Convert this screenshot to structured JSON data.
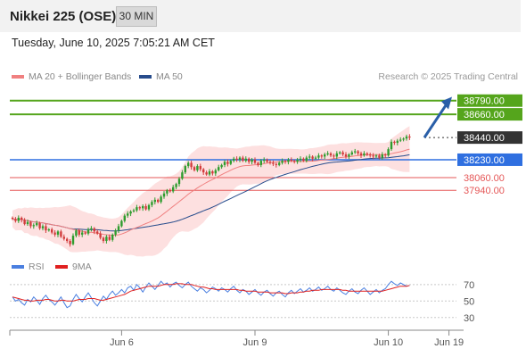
{
  "header": {
    "title": "Nikkei 225 (OSE)",
    "timeframe": "30 MIN"
  },
  "datetime": "Tuesday, June 10, 2025 7:05:21 AM CET",
  "legend": {
    "ma20": "MA 20 + Bollinger Bands",
    "ma50": "MA 50",
    "credit": "Research © 2025 Trading Central"
  },
  "rsi_legend": {
    "rsi": "RSI",
    "ma9": "9MA"
  },
  "colors": {
    "target_green": "#55a51c",
    "current_dark": "#333333",
    "pivot_blue": "#2f6fe0",
    "support_red": "#e55757",
    "candle_green": "#2e9c2e",
    "candle_red": "#d23c3c",
    "ma20": "#f08080",
    "ma50": "#274c8c",
    "bollinger_fill": "#fde0e0",
    "arrow": "#2a5fa8"
  },
  "chart_data": [
    {
      "type": "candlestick",
      "title": "Nikkei 225 (OSE)",
      "interval": "30 MIN",
      "price_levels": [
        {
          "label": "38790.00",
          "value": 38790,
          "role": "target"
        },
        {
          "label": "38660.00",
          "value": 38660,
          "role": "target"
        },
        {
          "label": "38440.00",
          "value": 38440,
          "role": "last"
        },
        {
          "label": "38230.00",
          "value": 38230,
          "role": "pivot"
        },
        {
          "label": "38060.00",
          "value": 38060,
          "role": "support"
        },
        {
          "label": "37940.00",
          "value": 37940,
          "role": "support"
        }
      ],
      "ylim": [
        37350,
        38940
      ],
      "x_ticks": [
        {
          "label": "Jun 6",
          "index": 36
        },
        {
          "label": "Jun 9",
          "index": 80
        },
        {
          "label": "Jun 10",
          "index": 124
        },
        {
          "label": "Jun 19",
          "index": 144
        }
      ],
      "close": [
        37670,
        37650,
        37680,
        37660,
        37620,
        37640,
        37600,
        37610,
        37630,
        37580,
        37600,
        37560,
        37570,
        37540,
        37520,
        37550,
        37500,
        37480,
        37460,
        37430,
        37510,
        37560,
        37520,
        37540,
        37530,
        37570,
        37580,
        37550,
        37530,
        37490,
        37460,
        37500,
        37470,
        37520,
        37560,
        37600,
        37650,
        37700,
        37720,
        37740,
        37750,
        37780,
        37770,
        37790,
        37760,
        37800,
        37830,
        37850,
        37830,
        37880,
        37910,
        37940,
        37930,
        37970,
        38000,
        38050,
        38110,
        38170,
        38200,
        38160,
        38130,
        38170,
        38140,
        38110,
        38090,
        38120,
        38100,
        38130,
        38160,
        38180,
        38210,
        38190,
        38220,
        38240,
        38230,
        38250,
        38220,
        38240,
        38210,
        38230,
        38200,
        38180,
        38220,
        38230,
        38210,
        38200,
        38190,
        38180,
        38200,
        38220,
        38210,
        38230,
        38220,
        38210,
        38230,
        38240,
        38220,
        38250,
        38260,
        38240,
        38250,
        38270,
        38260,
        38280,
        38290,
        38270,
        38260,
        38290,
        38300,
        38280,
        38260,
        38280,
        38300,
        38310,
        38290,
        38270,
        38290,
        38280,
        38270,
        38260,
        38270,
        38250,
        38280,
        38270,
        38330,
        38400,
        38390,
        38410,
        38420,
        38430,
        38450,
        38440
      ],
      "series": [
        {
          "name": "MA 20 + Bollinger Bands",
          "band": [
            37500,
            38300
          ]
        },
        {
          "name": "MA 50"
        }
      ]
    },
    {
      "type": "line",
      "title": "RSI",
      "y_ticks": [
        30,
        50,
        70
      ],
      "ylim": [
        20,
        85
      ],
      "series": [
        {
          "name": "RSI",
          "values": [
            55,
            50,
            52,
            48,
            45,
            52,
            49,
            55,
            51,
            46,
            53,
            57,
            52,
            49,
            45,
            50,
            55,
            48,
            42,
            44,
            52,
            58,
            53,
            49,
            55,
            60,
            54,
            48,
            44,
            50,
            56,
            52,
            58,
            62,
            57,
            60,
            64,
            60,
            66,
            68,
            63,
            70,
            66,
            61,
            67,
            72,
            68,
            64,
            69,
            74,
            70,
            72,
            67,
            71,
            73,
            69,
            66,
            70,
            73,
            68,
            65,
            62,
            66,
            64,
            60,
            63,
            67,
            65,
            62,
            66,
            64,
            61,
            65,
            68,
            63,
            60,
            64,
            62,
            58,
            61,
            64,
            60,
            57,
            61,
            63,
            59,
            56,
            60,
            62,
            58,
            55,
            60,
            63,
            59,
            62,
            65,
            61,
            63,
            66,
            62,
            64,
            67,
            63,
            65,
            68,
            64,
            62,
            66,
            63,
            60,
            58,
            62,
            65,
            61,
            59,
            63,
            66,
            62,
            58,
            61,
            64,
            60,
            63,
            65,
            70,
            74,
            71,
            69,
            72,
            70,
            68,
            69
          ]
        },
        {
          "name": "9MA",
          "values": [
            55,
            54,
            53,
            52,
            51,
            51,
            50,
            50,
            51,
            51,
            51,
            52,
            52,
            51,
            50,
            50,
            51,
            51,
            50,
            50,
            50,
            51,
            52,
            52,
            52,
            53,
            53,
            53,
            52,
            51,
            51,
            52,
            53,
            54,
            55,
            56,
            57,
            58,
            60,
            62,
            63,
            64,
            65,
            66,
            67,
            68,
            68,
            68,
            68,
            69,
            70,
            70,
            70,
            70,
            71,
            71,
            71,
            70,
            70,
            70,
            69,
            68,
            67,
            67,
            66,
            65,
            65,
            64,
            64,
            64,
            64,
            64,
            64,
            64,
            64,
            63,
            63,
            62,
            62,
            62,
            62,
            61,
            61,
            61,
            61,
            60,
            60,
            60,
            60,
            60,
            59,
            59,
            60,
            60,
            60,
            61,
            61,
            62,
            62,
            63,
            63,
            63,
            64,
            64,
            64,
            64,
            64,
            64,
            64,
            63,
            63,
            62,
            62,
            62,
            62,
            62,
            62,
            62,
            62,
            62,
            62,
            62,
            62,
            63,
            64,
            65,
            66,
            67,
            68,
            68,
            68,
            69
          ]
        }
      ]
    }
  ]
}
